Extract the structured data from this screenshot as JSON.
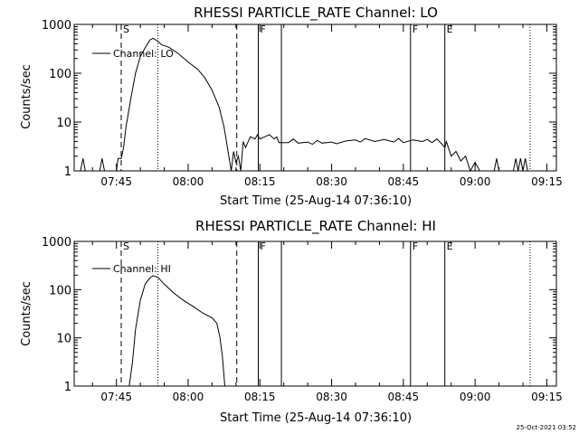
{
  "footer": {
    "timestamp": "25-Oct-2021 03:52"
  },
  "chart_data": [
    {
      "type": "line",
      "title": "RHESSI PARTICLE_RATE Channel: LO",
      "xlabel": "Start Time (25-Aug-14 07:36:10)",
      "ylabel": "Counts/sec",
      "y_scale": "log",
      "ylim": [
        1,
        1000
      ],
      "xlim": [
        "07:36:10",
        "09:17:00"
      ],
      "x_ticks": [
        "07:45",
        "08:00",
        "08:15",
        "08:30",
        "08:45",
        "09:00",
        "09:15"
      ],
      "y_ticks": [
        "1",
        "10",
        "100",
        "1000"
      ],
      "legend": {
        "position": "top-left",
        "entries": [
          "Channel: LO"
        ]
      },
      "colors": {
        "line": "#000000",
        "background": "#ffffff"
      },
      "markers": [
        {
          "label": "S",
          "time": "07:46:00",
          "style": "dashed"
        },
        {
          "label": "",
          "time": "07:53:40",
          "style": "dotted"
        },
        {
          "label": "",
          "time": "08:10:10",
          "style": "dashed"
        },
        {
          "label": "F",
          "time": "08:14:40",
          "style": "solid"
        },
        {
          "label": "",
          "time": "08:19:30",
          "style": "solid"
        },
        {
          "label": "F",
          "time": "08:46:30",
          "style": "solid"
        },
        {
          "label": "E",
          "time": "08:53:40",
          "style": "solid"
        },
        {
          "label": "",
          "time": "09:11:30",
          "style": "dotted"
        }
      ],
      "series": [
        {
          "name": "Channel: LO",
          "points": [
            [
              "07:37:30",
              1
            ],
            [
              "07:38:00",
              1.8
            ],
            [
              "07:38:30",
              1
            ],
            [
              "07:41:30",
              1
            ],
            [
              "07:42:00",
              1.8
            ],
            [
              "07:42:30",
              1
            ],
            [
              "07:45:00",
              1
            ],
            [
              "07:45:20",
              1.8
            ],
            [
              "07:46:00",
              1.8
            ],
            [
              "07:46:30",
              3
            ],
            [
              "07:47:00",
              8
            ],
            [
              "07:48:00",
              30
            ],
            [
              "07:49:00",
              100
            ],
            [
              "07:50:00",
              220
            ],
            [
              "07:51:00",
              330
            ],
            [
              "07:52:00",
              480
            ],
            [
              "07:52:40",
              520
            ],
            [
              "07:53:40",
              450
            ],
            [
              "07:54:30",
              380
            ],
            [
              "07:56:00",
              340
            ],
            [
              "07:58:00",
              250
            ],
            [
              "08:00:00",
              170
            ],
            [
              "08:02:00",
              120
            ],
            [
              "08:03:30",
              80
            ],
            [
              "08:05:00",
              45
            ],
            [
              "08:06:30",
              20
            ],
            [
              "08:07:30",
              8
            ],
            [
              "08:08:00",
              4
            ],
            [
              "08:08:30",
              2
            ],
            [
              "08:09:00",
              1
            ],
            [
              "08:09:30",
              2.5
            ],
            [
              "08:10:00",
              1.5
            ],
            [
              "08:10:30",
              2
            ],
            [
              "08:11:00",
              1
            ],
            [
              "08:11:30",
              4
            ],
            [
              "08:12:00",
              3
            ],
            [
              "08:13:00",
              5
            ],
            [
              "08:14:00",
              4.5
            ],
            [
              "08:14:30",
              5.5
            ],
            [
              "08:15:00",
              4.5
            ],
            [
              "08:16:00",
              5
            ],
            [
              "08:17:00",
              5.5
            ],
            [
              "08:18:00",
              4.5
            ],
            [
              "08:18:30",
              5
            ],
            [
              "08:19:00",
              3.8
            ],
            [
              "08:21:00",
              3.8
            ],
            [
              "08:22:00",
              4.5
            ],
            [
              "08:23:00",
              3.7
            ],
            [
              "08:25:00",
              3.9
            ],
            [
              "08:26:00",
              3.5
            ],
            [
              "08:27:00",
              4.2
            ],
            [
              "08:28:00",
              3.7
            ],
            [
              "08:30:00",
              3.9
            ],
            [
              "08:31:00",
              3.6
            ],
            [
              "08:33:00",
              4.1
            ],
            [
              "08:35:00",
              4.3
            ],
            [
              "08:36:00",
              3.9
            ],
            [
              "08:37:00",
              4.6
            ],
            [
              "08:39:00",
              4
            ],
            [
              "08:41:00",
              4.4
            ],
            [
              "08:43:00",
              3.9
            ],
            [
              "08:44:00",
              4.6
            ],
            [
              "08:45:00",
              3.8
            ],
            [
              "08:47:00",
              4.3
            ],
            [
              "08:49:00",
              4
            ],
            [
              "08:50:00",
              4.4
            ],
            [
              "08:51:00",
              3.8
            ],
            [
              "08:52:00",
              4.5
            ],
            [
              "08:53:00",
              3.6
            ],
            [
              "08:53:40",
              3
            ],
            [
              "08:54:00",
              4
            ],
            [
              "08:55:00",
              2
            ],
            [
              "08:56:00",
              2.5
            ],
            [
              "08:57:00",
              1.6
            ],
            [
              "08:58:00",
              2
            ],
            [
              "08:59:00",
              1
            ],
            [
              "09:00:00",
              1.5
            ],
            [
              "09:01:00",
              1
            ],
            [
              "09:04:00",
              1
            ],
            [
              "09:04:30",
              1.8
            ],
            [
              "09:05:00",
              1
            ],
            [
              "09:08:00",
              1
            ],
            [
              "09:08:30",
              1.8
            ],
            [
              "09:09:00",
              1
            ],
            [
              "09:09:30",
              1.8
            ],
            [
              "09:10:00",
              1
            ],
            [
              "09:10:30",
              1.8
            ],
            [
              "09:11:00",
              1
            ]
          ]
        }
      ]
    },
    {
      "type": "line",
      "title": "RHESSI PARTICLE_RATE Channel: HI",
      "xlabel": "Start Time (25-Aug-14 07:36:10)",
      "ylabel": "Counts/sec",
      "y_scale": "log",
      "ylim": [
        1,
        1000
      ],
      "xlim": [
        "07:36:10",
        "09:17:00"
      ],
      "x_ticks": [
        "07:45",
        "08:00",
        "08:15",
        "08:30",
        "08:45",
        "09:00",
        "09:15"
      ],
      "y_ticks": [
        "1",
        "10",
        "100",
        "1000"
      ],
      "legend": {
        "position": "top-left",
        "entries": [
          "Channel: HI"
        ]
      },
      "colors": {
        "line": "#000000",
        "background": "#ffffff"
      },
      "markers": [
        {
          "label": "S",
          "time": "07:46:00",
          "style": "dashed"
        },
        {
          "label": "",
          "time": "07:53:40",
          "style": "dotted"
        },
        {
          "label": "",
          "time": "08:10:10",
          "style": "dashed"
        },
        {
          "label": "F",
          "time": "08:14:40",
          "style": "solid"
        },
        {
          "label": "",
          "time": "08:19:30",
          "style": "solid"
        },
        {
          "label": "F",
          "time": "08:46:30",
          "style": "solid"
        },
        {
          "label": "E",
          "time": "08:53:40",
          "style": "solid"
        },
        {
          "label": "",
          "time": "09:11:30",
          "style": "dotted"
        }
      ],
      "series": [
        {
          "name": "Channel: HI",
          "points": [
            [
              "07:47:40",
              1
            ],
            [
              "07:48:20",
              3
            ],
            [
              "07:49:00",
              15
            ],
            [
              "07:50:00",
              60
            ],
            [
              "07:51:00",
              130
            ],
            [
              "07:52:00",
              175
            ],
            [
              "07:52:40",
              195
            ],
            [
              "07:53:40",
              180
            ],
            [
              "07:55:00",
              130
            ],
            [
              "07:57:00",
              85
            ],
            [
              "07:59:00",
              60
            ],
            [
              "08:01:00",
              45
            ],
            [
              "08:03:00",
              33
            ],
            [
              "08:05:00",
              26
            ],
            [
              "08:06:00",
              20
            ],
            [
              "08:06:40",
              10
            ],
            [
              "08:07:10",
              4
            ],
            [
              "08:07:40",
              1
            ]
          ]
        }
      ]
    }
  ]
}
